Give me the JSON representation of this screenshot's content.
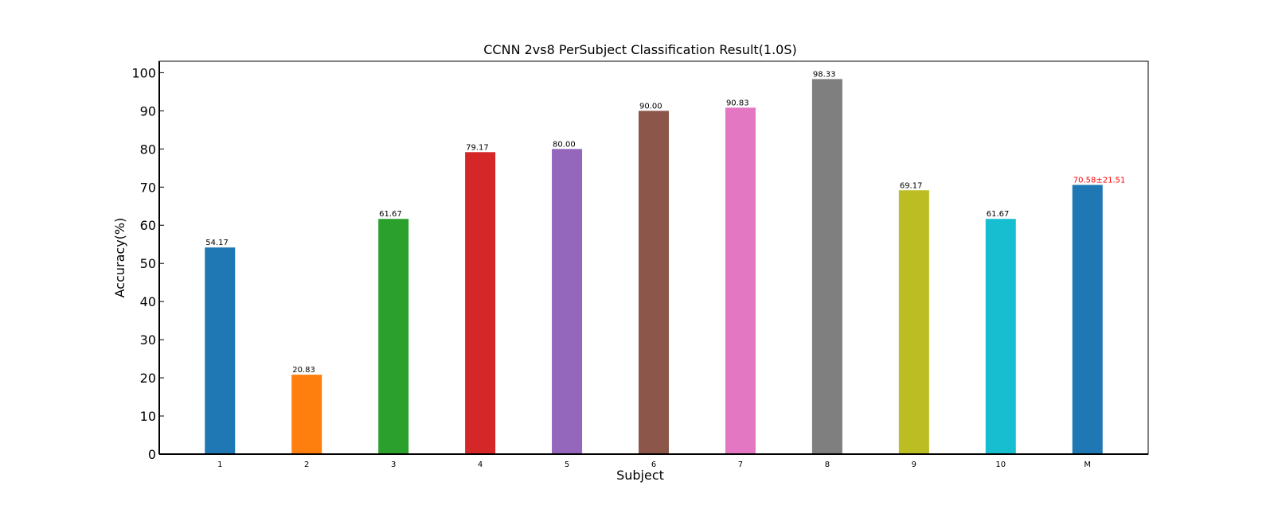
{
  "chart_data": {
    "type": "bar",
    "title": "CCNN 2vs8 PerSubject Classification Result(1.0S)",
    "xlabel": "Subject",
    "ylabel": "Accuracy(%)",
    "ylim": [
      0,
      103
    ],
    "yticks": [
      0,
      10,
      20,
      30,
      40,
      50,
      60,
      70,
      80,
      90,
      100
    ],
    "grid": false,
    "categories": [
      "1",
      "2",
      "3",
      "4",
      "5",
      "6",
      "7",
      "8",
      "9",
      "10",
      "M"
    ],
    "values": [
      54.17,
      20.83,
      61.67,
      79.17,
      80.0,
      90.0,
      90.83,
      98.33,
      69.17,
      61.67,
      70.58
    ],
    "value_labels": [
      "54.17",
      "20.83",
      "61.67",
      "79.17",
      "80.00",
      "90.00",
      "90.83",
      "98.33",
      "69.17",
      "61.67",
      "70.58±21.51"
    ],
    "colors": [
      "#1f77b4",
      "#ff7f0e",
      "#2ca02c",
      "#d62728",
      "#9467bd",
      "#8c564b",
      "#e377c2",
      "#7f7f7f",
      "#bcbd22",
      "#17becf",
      "#1f77b4"
    ],
    "label_colors": [
      "#000000",
      "#000000",
      "#000000",
      "#000000",
      "#000000",
      "#000000",
      "#000000",
      "#000000",
      "#000000",
      "#000000",
      "#ff0000"
    ]
  }
}
